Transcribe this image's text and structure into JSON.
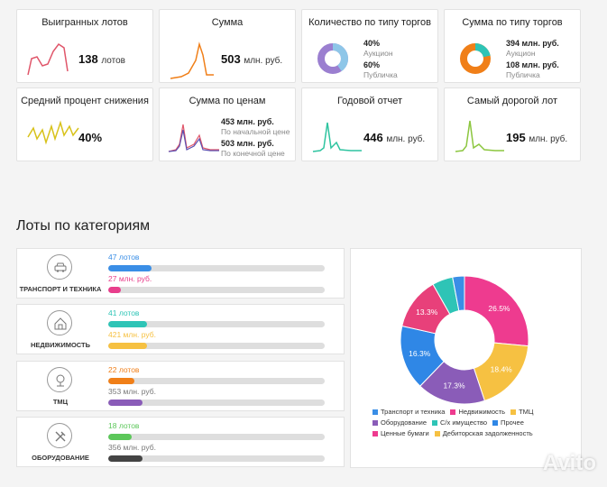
{
  "stats_row1": [
    {
      "title": "Выигранных лотов",
      "value": "138",
      "unit": "лотов"
    },
    {
      "title": "Сумма",
      "value": "503",
      "unit": "млн. руб."
    },
    {
      "title": "Количество по типу торгов",
      "a_value": "40%",
      "a_label": "Аукцион",
      "b_value": "60%",
      "b_label": "Публичка"
    },
    {
      "title": "Сумма по типу торгов",
      "a_value": "394 млн. руб.",
      "a_label": "Аукцион",
      "b_value": "108 млн. руб.",
      "b_label": "Публичка"
    }
  ],
  "stats_row2": [
    {
      "title": "Средний процент снижения",
      "value": "40%"
    },
    {
      "title": "Сумма по ценам",
      "a_value": "453 млн. руб.",
      "a_label": "По начальной цене",
      "b_value": "503 млн. руб.",
      "b_label": "По конечной цене"
    },
    {
      "title": "Годовой отчет",
      "value": "446",
      "unit": "млн. руб."
    },
    {
      "title": "Самый дорогой лот",
      "value": "195",
      "unit": "млн. руб."
    }
  ],
  "section_title": "Лоты по категориям",
  "categories": [
    {
      "name": "ТРАНСПОРТ И ТЕХНИКА",
      "count_label": "47 лотов",
      "sum_label": "27 млн. руб.",
      "count_color": "#3a8ee6",
      "sum_color": "#e83e8c",
      "count_fill": 0.2,
      "sum_fill": 0.06
    },
    {
      "name": "НЕДВИЖИМОСТЬ",
      "count_label": "41 лотов",
      "sum_label": "421 млн. руб.",
      "count_color": "#2ec4b6",
      "sum_color": "#f6c142",
      "count_fill": 0.18,
      "sum_fill": 0.18
    },
    {
      "name": "ТМЦ",
      "count_label": "22 лотов",
      "sum_label": "353 млн. руб.",
      "count_color": "#f07f18",
      "sum_color": "#8a5cb8",
      "count_fill": 0.12,
      "sum_fill": 0.16
    },
    {
      "name": "ОБОРУДОВАНИЕ",
      "count_label": "18 лотов",
      "sum_label": "356 млн. руб.",
      "count_color": "#5cc75a",
      "sum_color": "#444444",
      "count_fill": 0.11,
      "sum_fill": 0.16
    }
  ],
  "chart_data": {
    "type": "pie",
    "title": "",
    "donut": true,
    "slices": [
      {
        "name": "Ценные бумаги",
        "value": 26.5,
        "label": "26.5%",
        "color": "#ee3b8f"
      },
      {
        "name": "Дебиторская задолженность",
        "value": 18.4,
        "label": "18.4%",
        "color": "#f6c142"
      },
      {
        "name": "Оборудование",
        "value": 17.3,
        "label": "17.3%",
        "color": "#8a5cb8"
      },
      {
        "name": "Прочее",
        "value": 16.3,
        "label": "16.3%",
        "color": "#2f87e6"
      },
      {
        "name": "Недвижимость",
        "value": 13.3,
        "label": "13.3%",
        "color": "#e8407a"
      },
      {
        "name": "С/х имущество",
        "value": 5.2,
        "label": "",
        "color": "#2ec4b6"
      },
      {
        "name": "Транспорт и техника",
        "value": 3.0,
        "label": "",
        "color": "#3a8ee6"
      }
    ],
    "legend": [
      {
        "label": "Транспорт и техника",
        "color": "#3a8ee6"
      },
      {
        "label": "Недвижимость",
        "color": "#ee3b8f"
      },
      {
        "label": "ТМЦ",
        "color": "#f6c142"
      },
      {
        "label": "Оборудование",
        "color": "#8a5cb8"
      },
      {
        "label": "С/х имущество",
        "color": "#2ec4b6"
      },
      {
        "label": "Прочее",
        "color": "#2f87e6"
      },
      {
        "label": "Ценные бумаги",
        "color": "#ee3b8f"
      },
      {
        "label": "Дебиторская задолженность",
        "color": "#f6c142"
      }
    ]
  },
  "watermark": "Avito"
}
